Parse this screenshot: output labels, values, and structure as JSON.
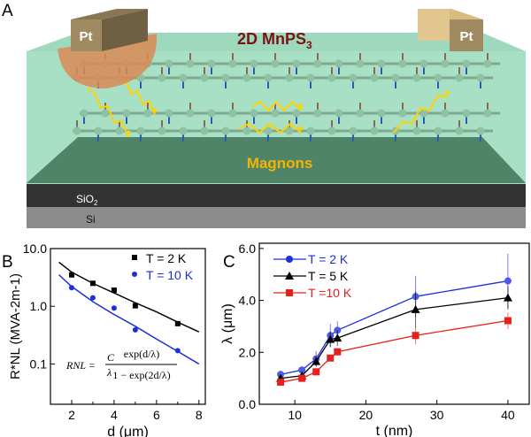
{
  "panels": {
    "a": "A",
    "b": "B",
    "c": "C"
  },
  "diagram": {
    "electrode_left": "Pt",
    "electrode_right": "Pt",
    "material": "2D MnPS",
    "material_sub": "3",
    "magnons": "Magnons",
    "substrate1": "SiO",
    "substrate1_sub": "2",
    "substrate2": "Si",
    "colors": {
      "material_text": "#7a1414",
      "magnons_text": "#f4b400",
      "film": "#a8e0c6",
      "floor": "#4f8468",
      "sio2": "#333333",
      "si": "#8c8c8c",
      "pt": "#a08a62",
      "contact": "#d98a55",
      "spin_up": "#8a6a50",
      "spin_down": "#2a5fb0",
      "magnon_wave": "#ffd200"
    }
  },
  "chart_data": [
    {
      "type": "scatter",
      "panel": "B",
      "xlabel": "d (μm)",
      "ylabel": "R*NL (MVA-2m-1)",
      "xlim": [
        1,
        8.3
      ],
      "ylim": [
        0.02,
        10
      ],
      "yscale": "log",
      "xticks": [
        "2",
        "4",
        "6",
        "8"
      ],
      "yticks": [
        "10.0",
        "1.0",
        "0.1"
      ],
      "legend": "top-right",
      "formula": {
        "lhs": "R",
        "lhs_sub": "NL",
        "eq": "=",
        "c": "C",
        "lam": "λ",
        "num": "exp(d/λ)",
        "den": "1 − exp(2d/λ)"
      },
      "series": [
        {
          "name": "T =  2 K",
          "color": "#000000",
          "marker": "square",
          "x": [
            2,
            3,
            4,
            5,
            7
          ],
          "y": [
            3.5,
            2.5,
            1.9,
            1.02,
            0.5
          ],
          "fit": {
            "x": [
              1.4,
              2,
              3,
              4,
              5,
              6,
              7,
              8
            ],
            "y": [
              5.8,
              3.9,
              2.5,
              1.7,
              1.15,
              0.8,
              0.53,
              0.36
            ]
          }
        },
        {
          "name": "T = 10 K",
          "color": "#1f2fd6",
          "marker": "circle",
          "x": [
            2,
            3,
            4,
            5,
            7
          ],
          "y": [
            2.1,
            1.4,
            0.93,
            0.39,
            0.17
          ],
          "fit": {
            "x": [
              1.4,
              2,
              3,
              4,
              5,
              6,
              7,
              8
            ],
            "y": [
              3.5,
              2.2,
              1.2,
              0.72,
              0.45,
              0.27,
              0.165,
              0.1
            ]
          }
        }
      ]
    },
    {
      "type": "line",
      "panel": "C",
      "xlabel": "t (nm)",
      "ylabel": "λ (μm)",
      "xlim": [
        5,
        43
      ],
      "ylim": [
        0,
        6.2
      ],
      "xticks": [
        "10",
        "20",
        "30",
        "40"
      ],
      "yticks": [
        "0.0",
        "2.0",
        "4.0",
        "6.0"
      ],
      "legend": "top-left",
      "x": [
        8,
        11,
        13,
        15,
        16,
        27,
        40
      ],
      "series": [
        {
          "name": "T = 2 K",
          "color": "#1f2fd6",
          "marker": "circle",
          "y": [
            1.15,
            1.32,
            1.75,
            2.65,
            2.85,
            4.15,
            4.75
          ],
          "err": [
            0.15,
            0.1,
            0.3,
            0.45,
            0.35,
            0.8,
            1.05
          ]
        },
        {
          "name": "T = 5 K",
          "color": "#000000",
          "marker": "triangle",
          "y": [
            1.0,
            1.1,
            1.65,
            2.5,
            2.55,
            3.65,
            4.1
          ],
          "err": [
            0.1,
            0.1,
            0.2,
            0.3,
            0.3,
            0.7,
            0.45
          ]
        },
        {
          "name": "T =10 K",
          "color": "#e8201c",
          "marker": "square",
          "y": [
            0.85,
            1.0,
            1.25,
            1.78,
            2.02,
            2.65,
            3.22
          ],
          "err": [
            0.1,
            0.08,
            0.1,
            0.1,
            0.15,
            0.35,
            0.32
          ]
        }
      ]
    }
  ]
}
